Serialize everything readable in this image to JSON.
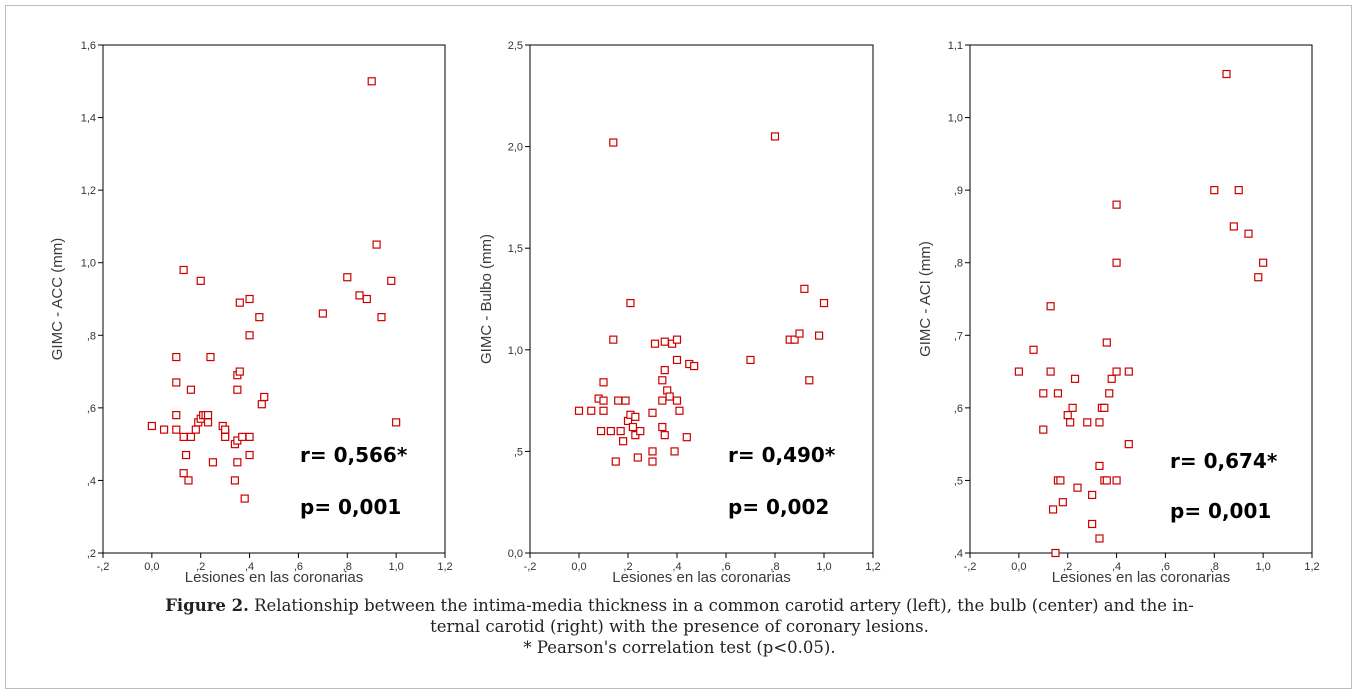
{
  "colors": {
    "marker": "#cc0000",
    "axis": "#000000"
  },
  "caption": {
    "figure_label": "Figure 2.",
    "line1_text": " Relationship between the intima-media thickness in a common carotid artery (left), the bulb (center) and the in-",
    "line2": "ternal carotid (right) with the presence of coronary lesions.",
    "line3": "* Pearson's correlation test (p<0.05)."
  },
  "chart_data": [
    {
      "type": "scatter",
      "xlabel": "Lesiones en las coronarias",
      "ylabel": "GIMC - ACC (mm)",
      "xlim": [
        -0.2,
        1.2
      ],
      "ylim": [
        0.2,
        1.6
      ],
      "x_ticks": [
        -0.2,
        0,
        0.2,
        0.4,
        0.6,
        0.8,
        1.0,
        1.2
      ],
      "x_tick_labels": [
        "-,2",
        "0,0",
        ",2",
        ",4",
        ",6",
        ",8",
        "1,0",
        "1,2"
      ],
      "y_ticks": [
        0.2,
        0.4,
        0.6,
        0.8,
        1.0,
        1.2,
        1.4,
        1.6
      ],
      "y_tick_labels": [
        ",2",
        ",4",
        ",6",
        ",8",
        "1,0",
        "1,2",
        "1,4",
        "1,6"
      ],
      "annotations": {
        "r": "r= 0,566*",
        "p": "p= 0,001"
      },
      "points": [
        [
          0.0,
          0.55
        ],
        [
          0.05,
          0.54
        ],
        [
          0.1,
          0.54
        ],
        [
          0.1,
          0.58
        ],
        [
          0.1,
          0.67
        ],
        [
          0.1,
          0.74
        ],
        [
          0.13,
          0.98
        ],
        [
          0.13,
          0.52
        ],
        [
          0.13,
          0.42
        ],
        [
          0.14,
          0.47
        ],
        [
          0.15,
          0.4
        ],
        [
          0.16,
          0.65
        ],
        [
          0.16,
          0.52
        ],
        [
          0.18,
          0.54
        ],
        [
          0.19,
          0.56
        ],
        [
          0.2,
          0.95
        ],
        [
          0.2,
          0.57
        ],
        [
          0.21,
          0.58
        ],
        [
          0.22,
          0.58
        ],
        [
          0.23,
          0.58
        ],
        [
          0.23,
          0.56
        ],
        [
          0.24,
          0.74
        ],
        [
          0.25,
          0.45
        ],
        [
          0.29,
          0.55
        ],
        [
          0.3,
          0.53
        ],
        [
          0.3,
          0.54
        ],
        [
          0.3,
          0.52
        ],
        [
          0.34,
          0.5
        ],
        [
          0.35,
          0.51
        ],
        [
          0.35,
          0.45
        ],
        [
          0.34,
          0.4
        ],
        [
          0.35,
          0.69
        ],
        [
          0.35,
          0.65
        ],
        [
          0.36,
          0.89
        ],
        [
          0.36,
          0.7
        ],
        [
          0.37,
          0.52
        ],
        [
          0.38,
          0.35
        ],
        [
          0.4,
          0.9
        ],
        [
          0.4,
          0.8
        ],
        [
          0.4,
          0.52
        ],
        [
          0.4,
          0.47
        ],
        [
          0.44,
          0.85
        ],
        [
          0.45,
          0.61
        ],
        [
          0.46,
          0.63
        ],
        [
          0.7,
          0.86
        ],
        [
          0.8,
          0.96
        ],
        [
          0.85,
          0.91
        ],
        [
          0.88,
          0.9
        ],
        [
          0.9,
          1.5
        ],
        [
          0.92,
          1.05
        ],
        [
          0.94,
          0.85
        ],
        [
          0.98,
          0.95
        ],
        [
          1.0,
          0.56
        ]
      ]
    },
    {
      "type": "scatter",
      "xlabel": "Lesiones en las coronarias",
      "ylabel": "GIMC - Bulbo (mm)",
      "xlim": [
        -0.2,
        1.2
      ],
      "ylim": [
        0.0,
        2.5
      ],
      "x_ticks": [
        -0.2,
        0,
        0.2,
        0.4,
        0.6,
        0.8,
        1.0,
        1.2
      ],
      "x_tick_labels": [
        "-,2",
        "0,0",
        ",2",
        ",4",
        ",6",
        ",8",
        "1,0",
        "1,2"
      ],
      "y_ticks": [
        0.0,
        0.5,
        1.0,
        1.5,
        2.0,
        2.5
      ],
      "y_tick_labels": [
        "0,0",
        ",5",
        "1,0",
        "1,5",
        "2,0",
        "2,5"
      ],
      "annotations": {
        "r": "r= 0,490*",
        "p": "p= 0,002"
      },
      "points": [
        [
          0.0,
          0.7
        ],
        [
          0.05,
          0.7
        ],
        [
          0.08,
          0.76
        ],
        [
          0.09,
          0.6
        ],
        [
          0.1,
          0.7
        ],
        [
          0.1,
          0.84
        ],
        [
          0.1,
          0.75
        ],
        [
          0.13,
          0.6
        ],
        [
          0.14,
          2.02
        ],
        [
          0.14,
          1.05
        ],
        [
          0.15,
          0.45
        ],
        [
          0.16,
          0.75
        ],
        [
          0.17,
          0.6
        ],
        [
          0.18,
          0.55
        ],
        [
          0.19,
          0.75
        ],
        [
          0.2,
          0.65
        ],
        [
          0.21,
          0.68
        ],
        [
          0.21,
          1.23
        ],
        [
          0.22,
          0.62
        ],
        [
          0.23,
          0.67
        ],
        [
          0.23,
          0.58
        ],
        [
          0.24,
          0.47
        ],
        [
          0.25,
          0.6
        ],
        [
          0.3,
          0.69
        ],
        [
          0.3,
          0.5
        ],
        [
          0.3,
          0.45
        ],
        [
          0.31,
          1.03
        ],
        [
          0.34,
          0.62
        ],
        [
          0.35,
          0.58
        ],
        [
          0.34,
          0.75
        ],
        [
          0.34,
          0.85
        ],
        [
          0.35,
          0.9
        ],
        [
          0.35,
          1.04
        ],
        [
          0.36,
          0.8
        ],
        [
          0.37,
          0.77
        ],
        [
          0.38,
          1.03
        ],
        [
          0.39,
          0.5
        ],
        [
          0.4,
          0.95
        ],
        [
          0.4,
          1.05
        ],
        [
          0.4,
          0.75
        ],
        [
          0.41,
          0.7
        ],
        [
          0.44,
          0.57
        ],
        [
          0.45,
          0.93
        ],
        [
          0.47,
          0.92
        ],
        [
          0.7,
          0.95
        ],
        [
          0.8,
          2.05
        ],
        [
          0.86,
          1.05
        ],
        [
          0.88,
          1.05
        ],
        [
          0.9,
          1.08
        ],
        [
          0.92,
          1.3
        ],
        [
          0.94,
          0.85
        ],
        [
          0.98,
          1.07
        ],
        [
          1.0,
          1.23
        ]
      ]
    },
    {
      "type": "scatter",
      "xlabel": "Lesiones en las coronarias",
      "ylabel": "GIMC - ACI (mm)",
      "xlim": [
        -0.2,
        1.2
      ],
      "ylim": [
        0.4,
        1.1
      ],
      "x_ticks": [
        -0.2,
        0,
        0.2,
        0.4,
        0.6,
        0.8,
        1.0,
        1.2
      ],
      "x_tick_labels": [
        "-,2",
        "0,0",
        ",2",
        ",4",
        ",6",
        ",8",
        "1,0",
        "1,2"
      ],
      "y_ticks": [
        0.4,
        0.5,
        0.6,
        0.7,
        0.8,
        0.9,
        1.0,
        1.1
      ],
      "y_tick_labels": [
        ",4",
        ",5",
        ",6",
        ",7",
        ",8",
        ",9",
        "1,0",
        "1,1"
      ],
      "annotations": {
        "r": "r= 0,674*",
        "p": "p= 0,001"
      },
      "points": [
        [
          0.0,
          0.65
        ],
        [
          0.06,
          0.68
        ],
        [
          0.1,
          0.62
        ],
        [
          0.1,
          0.57
        ],
        [
          0.13,
          0.74
        ],
        [
          0.13,
          0.65
        ],
        [
          0.14,
          0.46
        ],
        [
          0.15,
          0.4
        ],
        [
          0.16,
          0.62
        ],
        [
          0.16,
          0.5
        ],
        [
          0.17,
          0.5
        ],
        [
          0.18,
          0.47
        ],
        [
          0.2,
          0.59
        ],
        [
          0.21,
          0.58
        ],
        [
          0.22,
          0.6
        ],
        [
          0.23,
          0.64
        ],
        [
          0.24,
          0.49
        ],
        [
          0.28,
          0.58
        ],
        [
          0.3,
          0.48
        ],
        [
          0.3,
          0.44
        ],
        [
          0.33,
          0.52
        ],
        [
          0.33,
          0.42
        ],
        [
          0.33,
          0.58
        ],
        [
          0.34,
          0.6
        ],
        [
          0.35,
          0.5
        ],
        [
          0.35,
          0.6
        ],
        [
          0.36,
          0.69
        ],
        [
          0.36,
          0.5
        ],
        [
          0.37,
          0.62
        ],
        [
          0.38,
          0.64
        ],
        [
          0.4,
          0.88
        ],
        [
          0.4,
          0.8
        ],
        [
          0.4,
          0.65
        ],
        [
          0.4,
          0.5
        ],
        [
          0.45,
          0.65
        ],
        [
          0.45,
          0.55
        ],
        [
          0.8,
          0.9
        ],
        [
          0.85,
          1.06
        ],
        [
          0.88,
          0.85
        ],
        [
          0.9,
          0.9
        ],
        [
          0.94,
          0.84
        ],
        [
          0.98,
          0.78
        ],
        [
          1.0,
          0.8
        ]
      ]
    }
  ]
}
